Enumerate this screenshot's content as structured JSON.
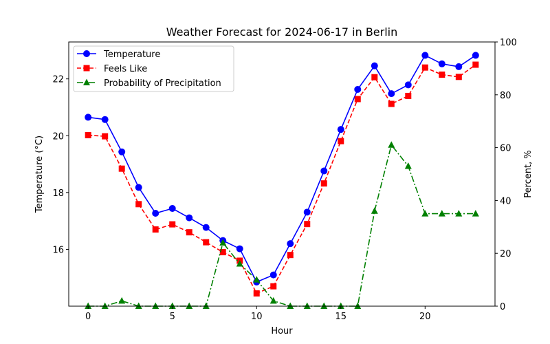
{
  "chart_data": {
    "type": "line",
    "title": "Weather Forecast for 2024-06-17 in Berlin",
    "xlabel": "Hour",
    "ylabel": "Temperature ($^\\circ$C)",
    "ylabel_display": "Temperature (°C)",
    "y2label": "Percent, %",
    "xlim": [
      -1.15,
      24.15
    ],
    "ylim": [
      14.0,
      23.3
    ],
    "y2lim": [
      0,
      100
    ],
    "x_ticks": [
      0,
      5,
      10,
      15,
      20
    ],
    "y_ticks": [
      16,
      18,
      20,
      22
    ],
    "y2_ticks": [
      0,
      20,
      40,
      60,
      80,
      100
    ],
    "legend_position": "top-left",
    "grid": false,
    "x": [
      0,
      1,
      2,
      3,
      4,
      5,
      6,
      7,
      8,
      9,
      10,
      11,
      12,
      13,
      14,
      15,
      16,
      17,
      18,
      19,
      20,
      21,
      22,
      23
    ],
    "series": [
      {
        "name": "Temperature",
        "axis": "left",
        "color": "#0000ff",
        "marker": "circle",
        "linestyle": "solid",
        "values": [
          20.65,
          20.57,
          19.43,
          18.18,
          17.27,
          17.44,
          17.11,
          16.77,
          16.31,
          16.02,
          14.85,
          15.1,
          16.2,
          17.31,
          18.76,
          20.22,
          21.63,
          22.46,
          21.48,
          21.79,
          22.83,
          22.53,
          22.43,
          22.83
        ]
      },
      {
        "name": "Feels Like",
        "axis": "left",
        "color": "#ff0000",
        "marker": "square",
        "linestyle": "dashed",
        "values": [
          20.02,
          19.98,
          18.84,
          17.59,
          16.7,
          16.88,
          16.6,
          16.25,
          15.9,
          15.6,
          14.45,
          14.7,
          15.8,
          16.89,
          18.32,
          19.81,
          21.29,
          22.06,
          21.12,
          21.4,
          22.4,
          22.15,
          22.07,
          22.5
        ]
      },
      {
        "name": "Probability of Precipitation",
        "axis": "right",
        "color": "#008000",
        "marker": "triangle",
        "linestyle": "dashdot",
        "values": [
          0,
          0,
          2,
          0,
          0,
          0,
          0,
          0,
          24,
          16,
          10,
          2,
          0,
          0,
          0,
          0,
          0,
          36,
          61,
          53,
          35,
          35,
          35,
          35
        ]
      }
    ]
  }
}
